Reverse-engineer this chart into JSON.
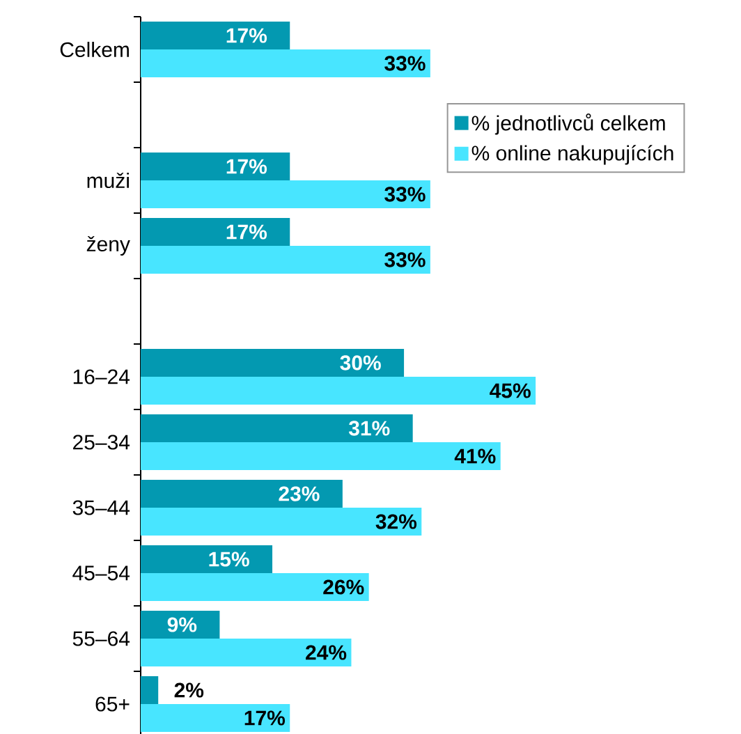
{
  "chart_data": {
    "type": "bar",
    "orientation": "horizontal",
    "categories": [
      "Celkem",
      null,
      "muži",
      "ženy",
      null,
      "16–24",
      "25–34",
      "35–44",
      "45–54",
      "55–64",
      "65+"
    ],
    "series": [
      {
        "name": "% jednotlivců celkem",
        "color": "#0399b1",
        "values": [
          17,
          null,
          17,
          17,
          null,
          30,
          31,
          23,
          15,
          9,
          2
        ],
        "value_labels": [
          "17%",
          null,
          "17%",
          "17%",
          null,
          "30%",
          "31%",
          "23%",
          "15%",
          "9%",
          "2%"
        ]
      },
      {
        "name": "% online nakupujících",
        "color": "#48e5ff",
        "values": [
          33,
          null,
          33,
          33,
          null,
          45,
          41,
          32,
          26,
          24,
          17
        ],
        "value_labels": [
          "33%",
          null,
          "33%",
          "33%",
          null,
          "45%",
          "41%",
          "32%",
          "26%",
          "24%",
          "17%"
        ]
      }
    ],
    "legend": "top right"
  }
}
